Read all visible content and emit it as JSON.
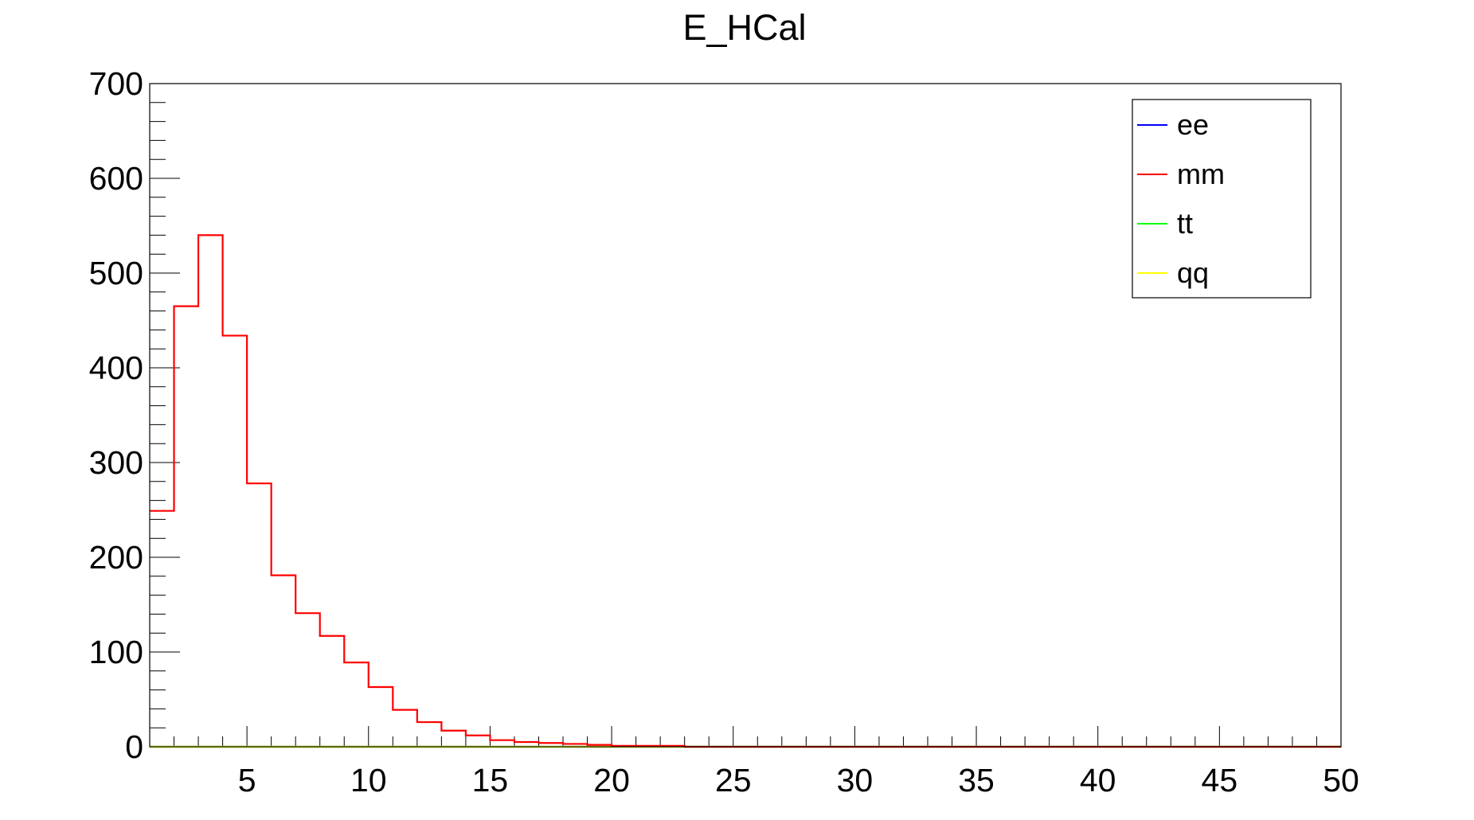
{
  "chart_data": {
    "type": "line",
    "title": "E_HCal",
    "xlabel": "",
    "ylabel": "",
    "xlim": [
      1,
      50
    ],
    "ylim": [
      0,
      700
    ],
    "x_ticks": [
      "5",
      "10",
      "15",
      "20",
      "25",
      "30",
      "35",
      "40",
      "45",
      "50"
    ],
    "y_ticks": [
      "0",
      "100",
      "200",
      "300",
      "400",
      "500",
      "600",
      "700"
    ],
    "bin_edges": [
      1,
      2,
      3,
      4,
      5,
      6,
      7,
      8,
      9,
      10,
      11,
      12,
      13,
      14,
      15,
      16,
      17,
      18,
      19,
      20,
      21,
      22,
      23,
      24,
      25,
      26,
      27,
      28,
      29,
      30,
      31,
      32,
      33,
      34,
      35,
      36,
      37,
      38,
      39,
      40,
      41,
      42,
      43,
      44,
      45,
      46,
      47,
      48,
      49,
      50
    ],
    "series": [
      {
        "name": "ee",
        "color": "#0000ff",
        "values": [
          0,
          0,
          0,
          0,
          0,
          0,
          0,
          0,
          0,
          0,
          0,
          0,
          0,
          0,
          0,
          0,
          0,
          0,
          0,
          0,
          0,
          0,
          0,
          0,
          0,
          0,
          0,
          0,
          0,
          0,
          0,
          0,
          0,
          0,
          0,
          0,
          0,
          0,
          0,
          0,
          0,
          0,
          0,
          0,
          0,
          0,
          0,
          0,
          0
        ]
      },
      {
        "name": "mm",
        "color": "#ff0000",
        "values": [
          249,
          465,
          540,
          434,
          278,
          181,
          141,
          117,
          89,
          63,
          39,
          26,
          17,
          12,
          7,
          5,
          4,
          3,
          2,
          1,
          1,
          1,
          0,
          0,
          0,
          0,
          0,
          0,
          0,
          0,
          0,
          0,
          0,
          0,
          0,
          0,
          0,
          0,
          0,
          0,
          0,
          0,
          0,
          0,
          0,
          0,
          0,
          0,
          0
        ]
      },
      {
        "name": "tt",
        "color": "#00ff00",
        "values": [
          0,
          0,
          0,
          0,
          0,
          0,
          0,
          0,
          0,
          0,
          0,
          0,
          0,
          0,
          0,
          0,
          0,
          0,
          0,
          0,
          0,
          0,
          0,
          0,
          0,
          0,
          0,
          0,
          0,
          0,
          0,
          0,
          0,
          0,
          0,
          0,
          0,
          0,
          0,
          0,
          0,
          0,
          0,
          0,
          0,
          0,
          0,
          0,
          0
        ]
      },
      {
        "name": "qq",
        "color": "#ffff00",
        "values": [
          0,
          0,
          0,
          0,
          0,
          0,
          0,
          0,
          0,
          0,
          0,
          0,
          0,
          0,
          0,
          0,
          0,
          0,
          0,
          0,
          0,
          0,
          0,
          0,
          0,
          0,
          0,
          0,
          0,
          0,
          0,
          0,
          0,
          0,
          0,
          0,
          0,
          0,
          0,
          0,
          0,
          0,
          0,
          0,
          0,
          0,
          0,
          0,
          0
        ]
      }
    ],
    "legend": [
      "ee",
      "mm",
      "tt",
      "qq"
    ],
    "legend_position": "top-right",
    "grid": false
  }
}
